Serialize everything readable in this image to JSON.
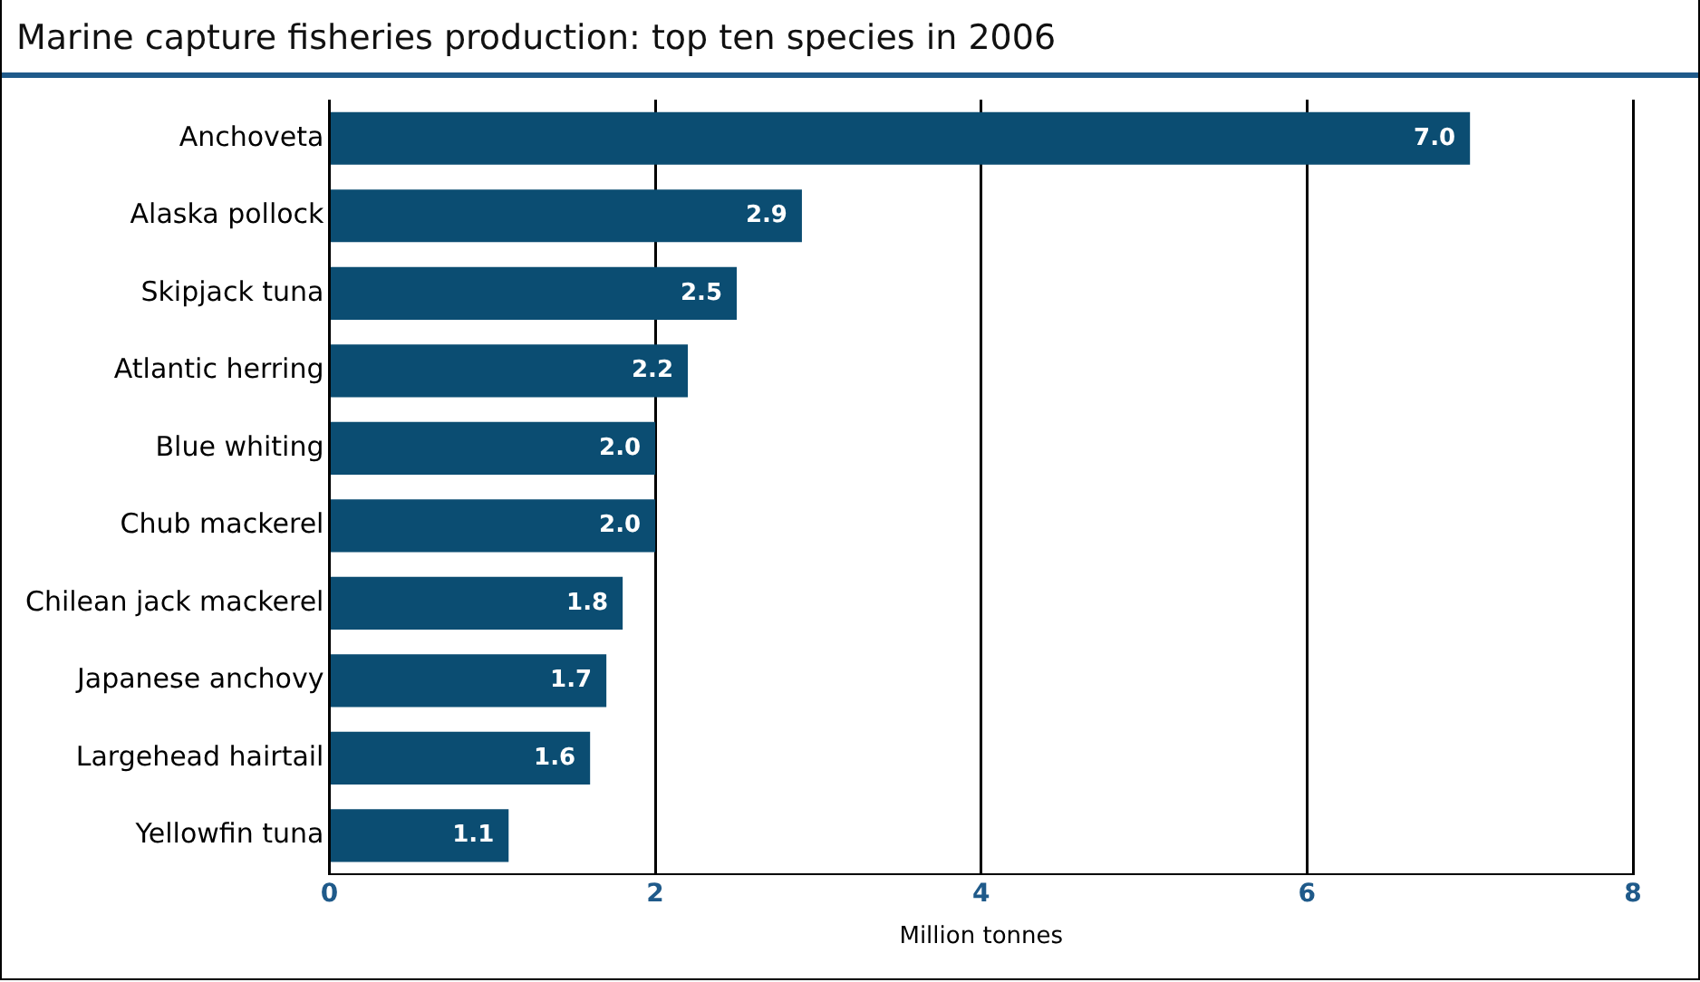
{
  "chart_data": {
    "type": "bar",
    "orientation": "horizontal",
    "title": "Marine capture fisheries production: top ten species in 2006",
    "xlabel": "Million tonnes",
    "categories": [
      "Anchoveta",
      "Alaska pollock",
      "Skipjack tuna",
      "Atlantic herring",
      "Blue whiting",
      "Chub mackerel",
      "Chilean jack mackerel",
      "Japanese anchovy",
      "Largehead hairtail",
      "Yellowfin tuna"
    ],
    "values": [
      7.0,
      2.9,
      2.5,
      2.2,
      2.0,
      2.0,
      1.8,
      1.7,
      1.6,
      1.1
    ],
    "value_labels": [
      "7.0",
      "2.9",
      "2.5",
      "2.2",
      "2.0",
      "2.0",
      "1.8",
      "1.7",
      "1.6",
      "1.1"
    ],
    "color": "#0b4d72",
    "xlim": [
      0,
      8
    ],
    "xticks": [
      0,
      2,
      4,
      6,
      8
    ],
    "grid": "x"
  }
}
